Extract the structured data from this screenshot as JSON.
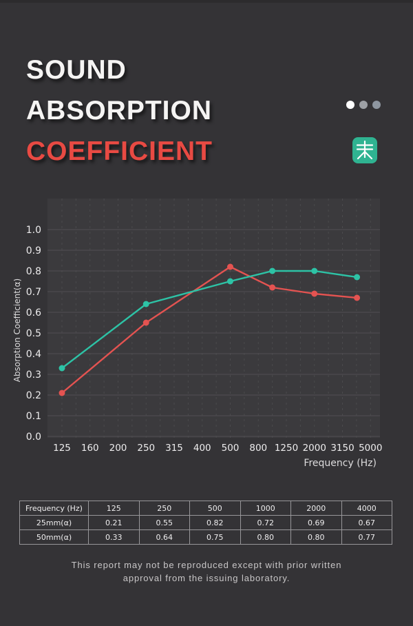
{
  "page": {
    "background": "#343336",
    "accent_red": "#e84a43",
    "accent_teal": "#2dc3a6"
  },
  "header": {
    "title_lines": [
      {
        "text": "SOUND",
        "color": "#f5f4f3"
      },
      {
        "text": "ABSORPTION",
        "color": "#f5f4f3"
      },
      {
        "text": "COEFFICIENT",
        "color": "#e84a43"
      }
    ],
    "dots": [
      "#ffffff",
      "#9ea1a6",
      "#8e96a0"
    ],
    "logo": {
      "bg": "#2fb391",
      "glyph": "tian-character",
      "stroke": "#ffffff"
    }
  },
  "chart_data": {
    "type": "line",
    "title": "",
    "xlabel": "Frequency (Hz)",
    "ylabel": "Absorption Coefficient(α)",
    "x_ticks": [
      "125",
      "160",
      "200",
      "250",
      "315",
      "400",
      "500",
      "800",
      "1250",
      "2000",
      "3150",
      "5000"
    ],
    "x_tick_values": [
      125,
      160,
      200,
      250,
      315,
      400,
      500,
      800,
      1250,
      2000,
      3150,
      5000
    ],
    "y_ticks": [
      "0.0",
      "0.1",
      "0.2",
      "0.3",
      "0.4",
      "0.5",
      "0.6",
      "0.7",
      "0.8",
      "0.9",
      "1.0"
    ],
    "ylim": [
      0.0,
      1.05
    ],
    "x_scale": "log-categorical",
    "grid": {
      "horizontal": "solid",
      "vertical": "dashed-half-step"
    },
    "legend": "none",
    "x": [
      125,
      250,
      500,
      1000,
      2000,
      4000
    ],
    "series": [
      {
        "name": "25mm(α)",
        "color": "#e45351",
        "values": [
          0.21,
          0.55,
          0.82,
          0.72,
          0.69,
          0.67
        ]
      },
      {
        "name": "50mm(α)",
        "color": "#2dc3a6",
        "values": [
          0.33,
          0.64,
          0.75,
          0.8,
          0.8,
          0.77
        ]
      }
    ],
    "colors": {
      "plot_bg": "#3b3a3d",
      "grid_major": "#504f52",
      "grid_minor": "#4b4a4d",
      "tick_text": "#edeced",
      "axis_text": "#dddcdd"
    }
  },
  "table": {
    "header": [
      "Frequency (Hz)",
      "125",
      "250",
      "500",
      "1000",
      "2000",
      "4000"
    ],
    "rows": [
      [
        "25mm(α)",
        "0.21",
        "0.55",
        "0.82",
        "0.72",
        "0.69",
        "0.67"
      ],
      [
        "50mm(α)",
        "0.33",
        "0.64",
        "0.75",
        "0.80",
        "0.80",
        "0.77"
      ]
    ]
  },
  "footer": {
    "lines": [
      "This report may not be reproduced except with prior written",
      "approval from the issuing laboratory."
    ]
  }
}
